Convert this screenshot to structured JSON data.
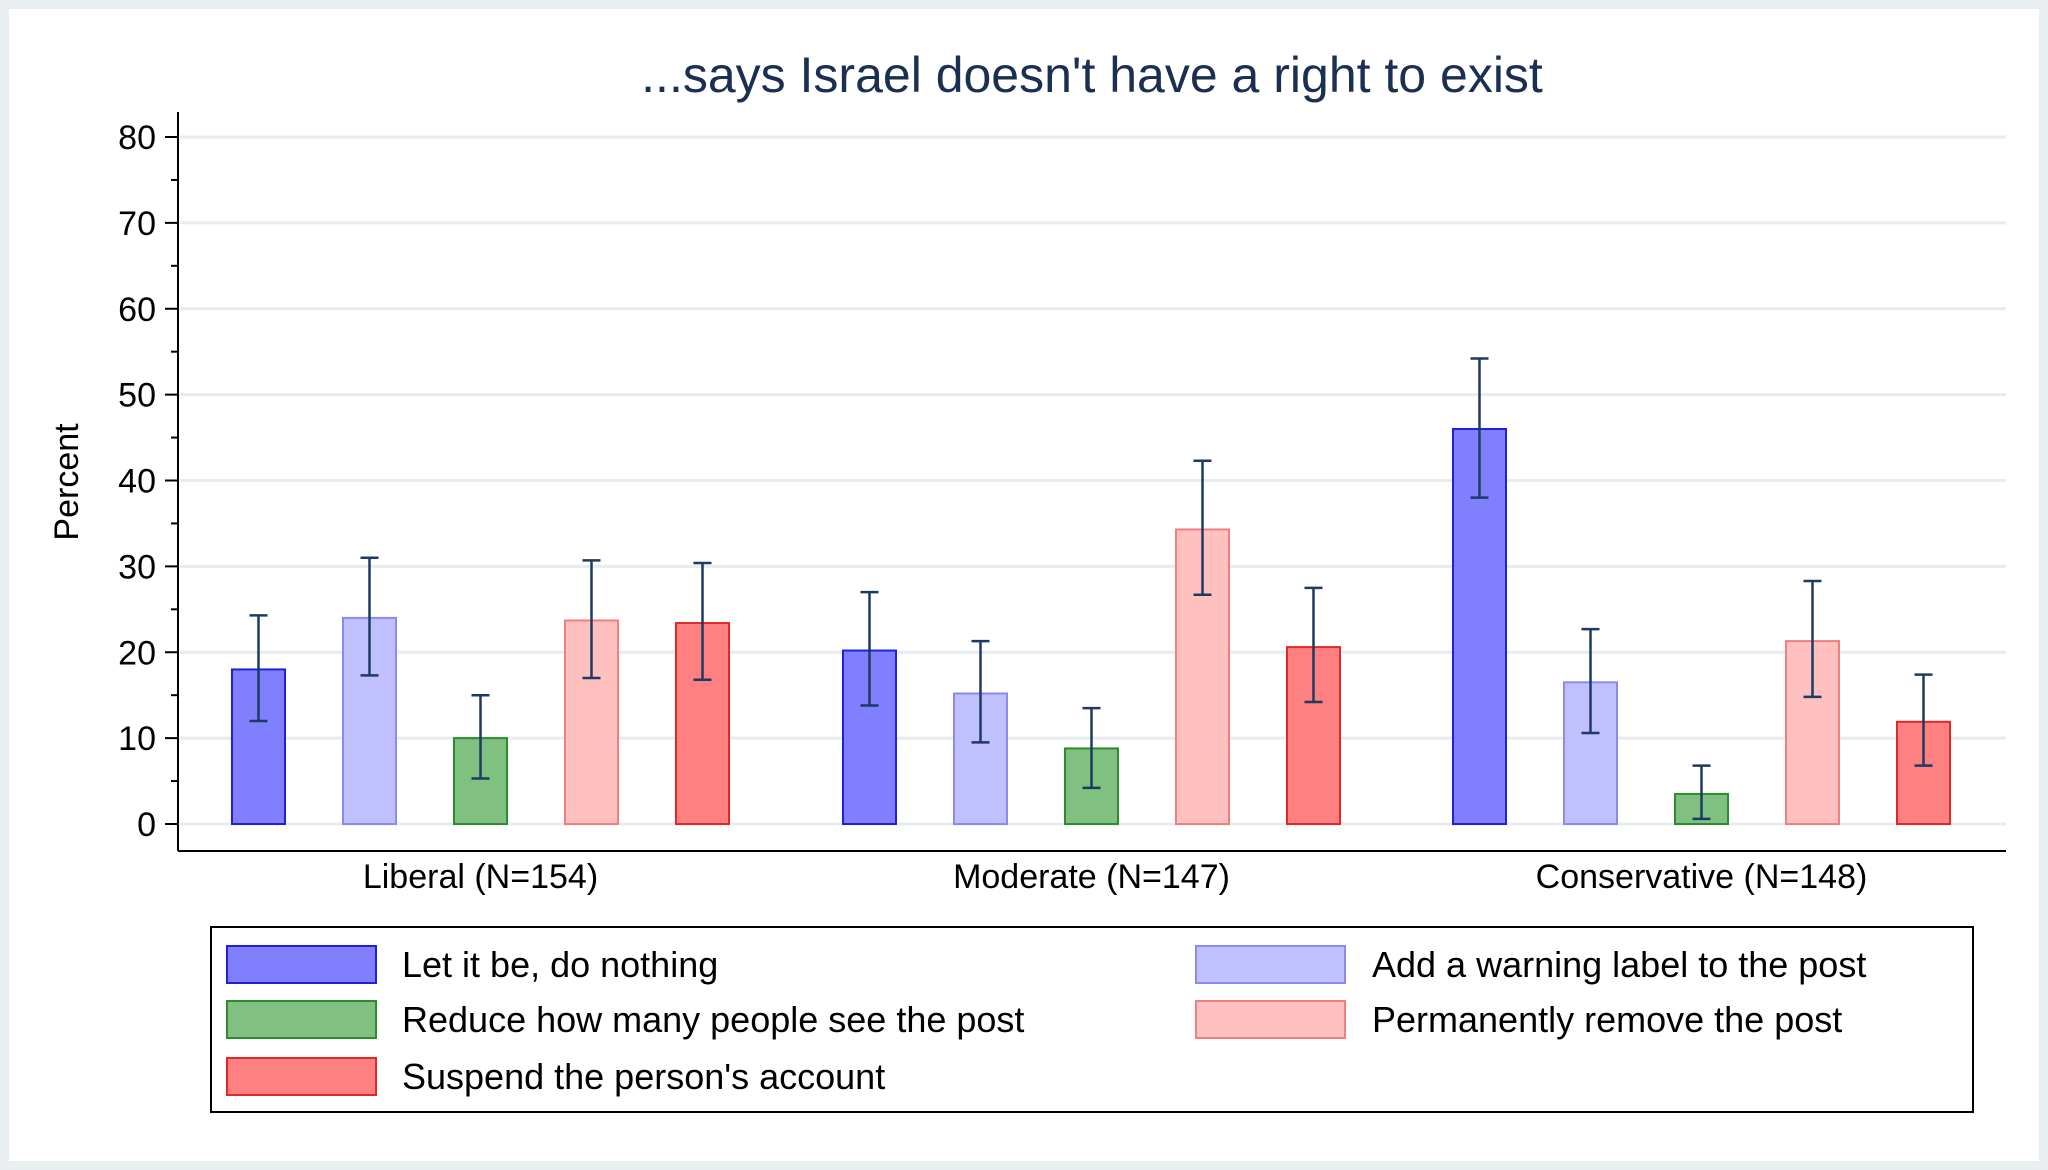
{
  "chart_data": {
    "type": "bar",
    "title": "...says Israel doesn't have a right to exist",
    "xlabel": "",
    "ylabel": "Percent",
    "ylim": [
      0,
      80
    ],
    "yticks": [
      "0",
      "10",
      "20",
      "30",
      "40",
      "50",
      "60",
      "70",
      "80"
    ],
    "grid": true,
    "legend_position": "bottom",
    "categories": [
      "Liberal (N=154)",
      "Moderate (N=147)",
      "Conservative (N=148)"
    ],
    "series": [
      {
        "name": "Let it be, do nothing",
        "color": "#8080ff",
        "border": "#2020d8",
        "values": [
          18,
          20.2,
          46
        ],
        "ci_low": [
          12,
          13.8,
          38
        ],
        "ci_high": [
          24.3,
          27,
          54.2
        ]
      },
      {
        "name": "Add a warning label to the post",
        "color": "#c0c0ff",
        "border": "#8a8aef",
        "values": [
          24,
          15.2,
          16.5
        ],
        "ci_low": [
          17.3,
          9.5,
          10.6
        ],
        "ci_high": [
          31,
          21.3,
          22.7
        ]
      },
      {
        "name": "Reduce how many people see the post",
        "color": "#80c080",
        "border": "#2e8b2e",
        "values": [
          10,
          8.8,
          3.5
        ],
        "ci_low": [
          5.3,
          4.2,
          0.6
        ],
        "ci_high": [
          15,
          13.5,
          6.8
        ]
      },
      {
        "name": "Permanently remove the post",
        "color": "#ffc0c0",
        "border": "#f08080",
        "values": [
          23.7,
          34.3,
          21.3
        ],
        "ci_low": [
          17,
          26.7,
          14.8
        ],
        "ci_high": [
          30.7,
          42.3,
          28.3
        ]
      },
      {
        "name": "Suspend the person's account",
        "color": "#ff8080",
        "border": "#e02828",
        "values": [
          23.4,
          20.6,
          11.9
        ],
        "ci_low": [
          16.8,
          14.2,
          6.8
        ],
        "ci_high": [
          30.4,
          27.5,
          17.4
        ]
      }
    ]
  }
}
